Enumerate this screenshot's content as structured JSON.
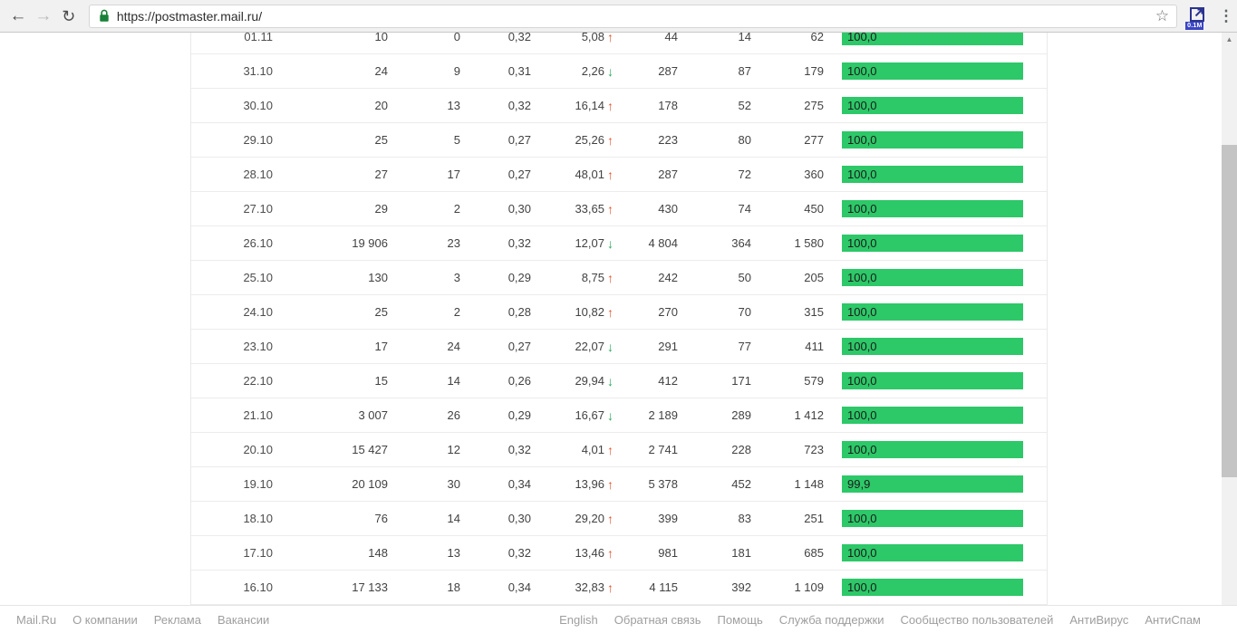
{
  "browser": {
    "url": "https://postmaster.mail.ru/",
    "extension_badge": "0.1M"
  },
  "glyphs": {
    "back": "←",
    "forward": "→",
    "refresh": "↻",
    "star": "☆",
    "menu": "⋮",
    "scroll_up": "▲",
    "scroll_down": "▼",
    "arrow_up": "↑",
    "arrow_down": "↓"
  },
  "colors": {
    "bar_green": "#2dc868",
    "arrow_up_red": "#e0532f",
    "arrow_down_green": "#27a85b",
    "lock_green": "#188038",
    "extension_blue": "#2b3490"
  },
  "table": {
    "rows": [
      {
        "date": "01.11",
        "c1": "10",
        "c2": "0",
        "c3": "0,32",
        "delta": "5,08",
        "dir": "up",
        "c4": "44",
        "c5": "14",
        "c6": "62",
        "bar": "100,0",
        "pct": 100
      },
      {
        "date": "31.10",
        "c1": "24",
        "c2": "9",
        "c3": "0,31",
        "delta": "2,26",
        "dir": "down",
        "c4": "287",
        "c5": "87",
        "c6": "179",
        "bar": "100,0",
        "pct": 100
      },
      {
        "date": "30.10",
        "c1": "20",
        "c2": "13",
        "c3": "0,32",
        "delta": "16,14",
        "dir": "up",
        "c4": "178",
        "c5": "52",
        "c6": "275",
        "bar": "100,0",
        "pct": 100
      },
      {
        "date": "29.10",
        "c1": "25",
        "c2": "5",
        "c3": "0,27",
        "delta": "25,26",
        "dir": "up",
        "c4": "223",
        "c5": "80",
        "c6": "277",
        "bar": "100,0",
        "pct": 100
      },
      {
        "date": "28.10",
        "c1": "27",
        "c2": "17",
        "c3": "0,27",
        "delta": "48,01",
        "dir": "up",
        "c4": "287",
        "c5": "72",
        "c6": "360",
        "bar": "100,0",
        "pct": 100
      },
      {
        "date": "27.10",
        "c1": "29",
        "c2": "2",
        "c3": "0,30",
        "delta": "33,65",
        "dir": "up",
        "c4": "430",
        "c5": "74",
        "c6": "450",
        "bar": "100,0",
        "pct": 100
      },
      {
        "date": "26.10",
        "c1": "19 906",
        "c2": "23",
        "c3": "0,32",
        "delta": "12,07",
        "dir": "down",
        "c4": "4 804",
        "c5": "364",
        "c6": "1 580",
        "bar": "100,0",
        "pct": 100
      },
      {
        "date": "25.10",
        "c1": "130",
        "c2": "3",
        "c3": "0,29",
        "delta": "8,75",
        "dir": "up",
        "c4": "242",
        "c5": "50",
        "c6": "205",
        "bar": "100,0",
        "pct": 100
      },
      {
        "date": "24.10",
        "c1": "25",
        "c2": "2",
        "c3": "0,28",
        "delta": "10,82",
        "dir": "up",
        "c4": "270",
        "c5": "70",
        "c6": "315",
        "bar": "100,0",
        "pct": 100
      },
      {
        "date": "23.10",
        "c1": "17",
        "c2": "24",
        "c3": "0,27",
        "delta": "22,07",
        "dir": "down",
        "c4": "291",
        "c5": "77",
        "c6": "411",
        "bar": "100,0",
        "pct": 100
      },
      {
        "date": "22.10",
        "c1": "15",
        "c2": "14",
        "c3": "0,26",
        "delta": "29,94",
        "dir": "down",
        "c4": "412",
        "c5": "171",
        "c6": "579",
        "bar": "100,0",
        "pct": 100
      },
      {
        "date": "21.10",
        "c1": "3 007",
        "c2": "26",
        "c3": "0,29",
        "delta": "16,67",
        "dir": "down",
        "c4": "2 189",
        "c5": "289",
        "c6": "1 412",
        "bar": "100,0",
        "pct": 100
      },
      {
        "date": "20.10",
        "c1": "15 427",
        "c2": "12",
        "c3": "0,32",
        "delta": "4,01",
        "dir": "up",
        "c4": "2 741",
        "c5": "228",
        "c6": "723",
        "bar": "100,0",
        "pct": 100
      },
      {
        "date": "19.10",
        "c1": "20 109",
        "c2": "30",
        "c3": "0,34",
        "delta": "13,96",
        "dir": "up",
        "c4": "5 378",
        "c5": "452",
        "c6": "1 148",
        "bar": "99,9",
        "pct": 99.9
      },
      {
        "date": "18.10",
        "c1": "76",
        "c2": "14",
        "c3": "0,30",
        "delta": "29,20",
        "dir": "up",
        "c4": "399",
        "c5": "83",
        "c6": "251",
        "bar": "100,0",
        "pct": 100
      },
      {
        "date": "17.10",
        "c1": "148",
        "c2": "13",
        "c3": "0,32",
        "delta": "13,46",
        "dir": "up",
        "c4": "981",
        "c5": "181",
        "c6": "685",
        "bar": "100,0",
        "pct": 100
      },
      {
        "date": "16.10",
        "c1": "17 133",
        "c2": "18",
        "c3": "0,34",
        "delta": "32,83",
        "dir": "up",
        "c4": "4 115",
        "c5": "392",
        "c6": "1 109",
        "bar": "100,0",
        "pct": 100
      }
    ]
  },
  "footer": {
    "left": [
      "Mail.Ru",
      "О компании",
      "Реклама",
      "Вакансии"
    ],
    "right": [
      "English",
      "Обратная связь",
      "Помощь",
      "Служба поддержки",
      "Сообщество пользователей",
      "АнтиВирус",
      "АнтиСпам"
    ]
  }
}
